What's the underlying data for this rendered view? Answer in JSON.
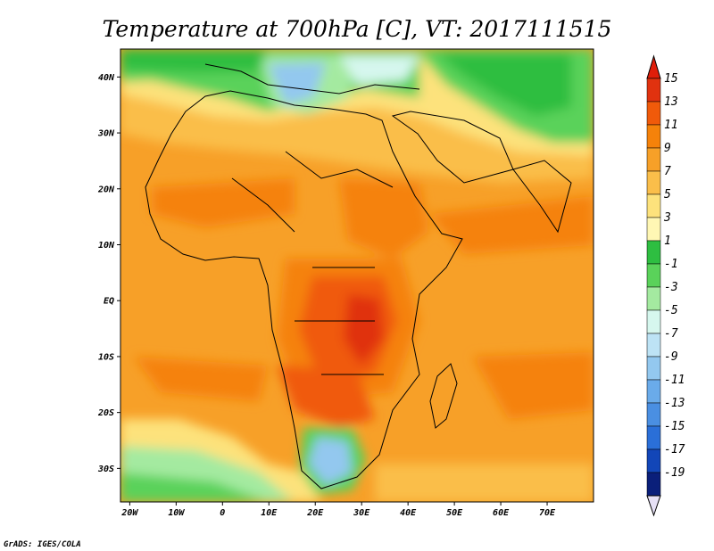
{
  "title": "Temperature at 700hPa [C], VT: 2017111515",
  "credit": "GrADS: IGES/COLA",
  "map": {
    "lon_range": [
      -22,
      80
    ],
    "lat_range": [
      -36,
      45
    ],
    "lon_ticks": [
      {
        "value": -20,
        "label": "20W"
      },
      {
        "value": -10,
        "label": "10W"
      },
      {
        "value": 0,
        "label": "0"
      },
      {
        "value": 10,
        "label": "10E"
      },
      {
        "value": 20,
        "label": "20E"
      },
      {
        "value": 30,
        "label": "30E"
      },
      {
        "value": 40,
        "label": "40E"
      },
      {
        "value": 50,
        "label": "50E"
      },
      {
        "value": 60,
        "label": "60E"
      },
      {
        "value": 70,
        "label": "70E"
      }
    ],
    "lat_ticks": [
      {
        "value": 40,
        "label": "40N"
      },
      {
        "value": 30,
        "label": "30N"
      },
      {
        "value": 20,
        "label": "20N"
      },
      {
        "value": 10,
        "label": "10N"
      },
      {
        "value": 0,
        "label": "EQ"
      },
      {
        "value": -10,
        "label": "10S"
      },
      {
        "value": -20,
        "label": "20S"
      },
      {
        "value": -30,
        "label": "30S"
      }
    ]
  },
  "colorbar": {
    "labels": [
      "15",
      "13",
      "11",
      "9",
      "7",
      "5",
      "3",
      "1",
      "-1",
      "-3",
      "-5",
      "-7",
      "-9",
      "-11",
      "-13",
      "-15",
      "-17",
      "-19"
    ],
    "colors": [
      "#e0320f",
      "#f05a0a",
      "#f5820a",
      "#f7a028",
      "#fabe4a",
      "#fde27c",
      "#fff7b4",
      "#2ebe41",
      "#5ad25a",
      "#a4eaa0",
      "#d6f7ee",
      "#bde3f5",
      "#93c8ef",
      "#6aabea",
      "#4a8fe2",
      "#2a6fd8",
      "#1246b8",
      "#0a1f7a"
    ],
    "top_arrow_color": "#e01e0a",
    "bottom_arrow_color": "#e6e0f5"
  }
}
